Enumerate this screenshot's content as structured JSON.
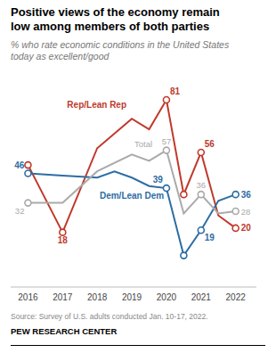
{
  "chart_data": {
    "type": "line",
    "title": "Positive views of the economy remain\nlow among members of both parties",
    "subtitle": [
      "% who rate economic conditions in the United States",
      "today as excellent/good"
    ],
    "source": "Source: Survey of U.S. adults conducted Jan. 10-17, 2022.",
    "branding": "PEW RESEARCH CENTER",
    "xlim": [
      2015.5,
      2022.6
    ],
    "xticks": [
      2016,
      2017,
      2018,
      2019,
      2020,
      2021,
      2022
    ],
    "ylim": [
      -8,
      92
    ],
    "tick_labels": "x",
    "grid": false,
    "data_labels": true,
    "series": [
      {
        "name": "Rep/Lean Rep",
        "color": "#C0392B",
        "x": [
          2016,
          2017,
          2018,
          2019,
          2019.5,
          2020,
          2020.5,
          2021,
          2021.5,
          2022
        ],
        "values": [
          50,
          18,
          58,
          72,
          67,
          81,
          36,
          56,
          26,
          20
        ],
        "value_labels": [
          null,
          "18",
          null,
          null,
          null,
          "81",
          null,
          "56",
          null,
          "20"
        ],
        "marker": "circle",
        "marker_x": [
          2016,
          2017,
          2020,
          2020.5,
          2021,
          2022
        ]
      },
      {
        "name": "Dem/Lean Dem",
        "color": "#2E6DA4",
        "x": [
          2016,
          2017,
          2018,
          2018.5,
          2019,
          2019.5,
          2020,
          2020.5,
          2021,
          2021.5,
          2022
        ],
        "values": [
          46,
          45,
          44,
          47,
          44,
          40,
          39,
          7,
          19,
          33,
          36
        ],
        "value_labels": [
          "46",
          null,
          null,
          null,
          null,
          null,
          "39",
          null,
          "19",
          null,
          "36"
        ],
        "marker": "circle",
        "marker_x": [
          2016,
          2020,
          2020.5,
          2021,
          2022
        ]
      },
      {
        "name": "Total",
        "color": "#AAAAAA",
        "x": [
          2016,
          2017,
          2018,
          2019,
          2019.5,
          2020,
          2020.5,
          2021,
          2021.5,
          2022
        ],
        "values": [
          32,
          32,
          47,
          55,
          52,
          57,
          27,
          36,
          27,
          28
        ],
        "value_labels": [
          "32",
          null,
          null,
          null,
          null,
          "57",
          null,
          "36",
          null,
          "28"
        ],
        "marker": "circle",
        "marker_x": [
          2016,
          2020,
          2021,
          2022
        ]
      }
    ]
  }
}
